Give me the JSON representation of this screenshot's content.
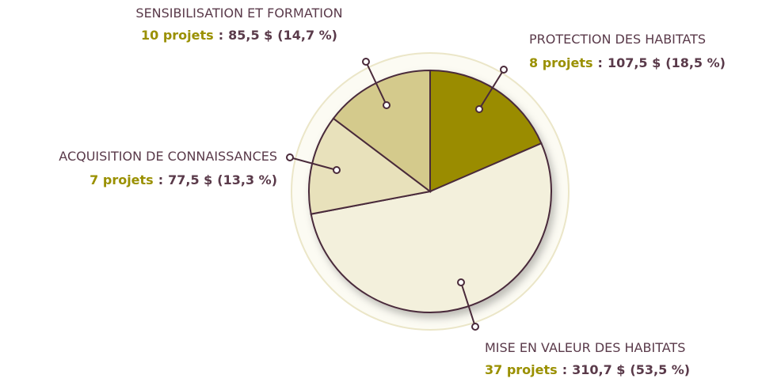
{
  "chart_data": {
    "type": "pie",
    "categories": [
      "PROTECTION DES HABITATS",
      "MISE EN VALEUR DES HABITATS",
      "ACQUISITION DE CONNAISSANCES",
      "SENSIBILISATION ET FORMATION"
    ],
    "values": [
      18.5,
      53.5,
      13.3,
      14.7
    ],
    "value_labels": [
      "(18,5 %)",
      "(53,5 %)",
      "(13,3 %)",
      "(14,7 %)"
    ],
    "project_labels": [
      "8 projets",
      "37 projets",
      "7 projets",
      "10 projets"
    ],
    "amount_labels": [
      "107,5 $",
      "310,7 $",
      "77,5 $",
      "85,5 $"
    ],
    "separator": ":",
    "colors": [
      "#9a8c00",
      "#f3f0dc",
      "#e8e1bb",
      "#d4ca8c"
    ]
  }
}
